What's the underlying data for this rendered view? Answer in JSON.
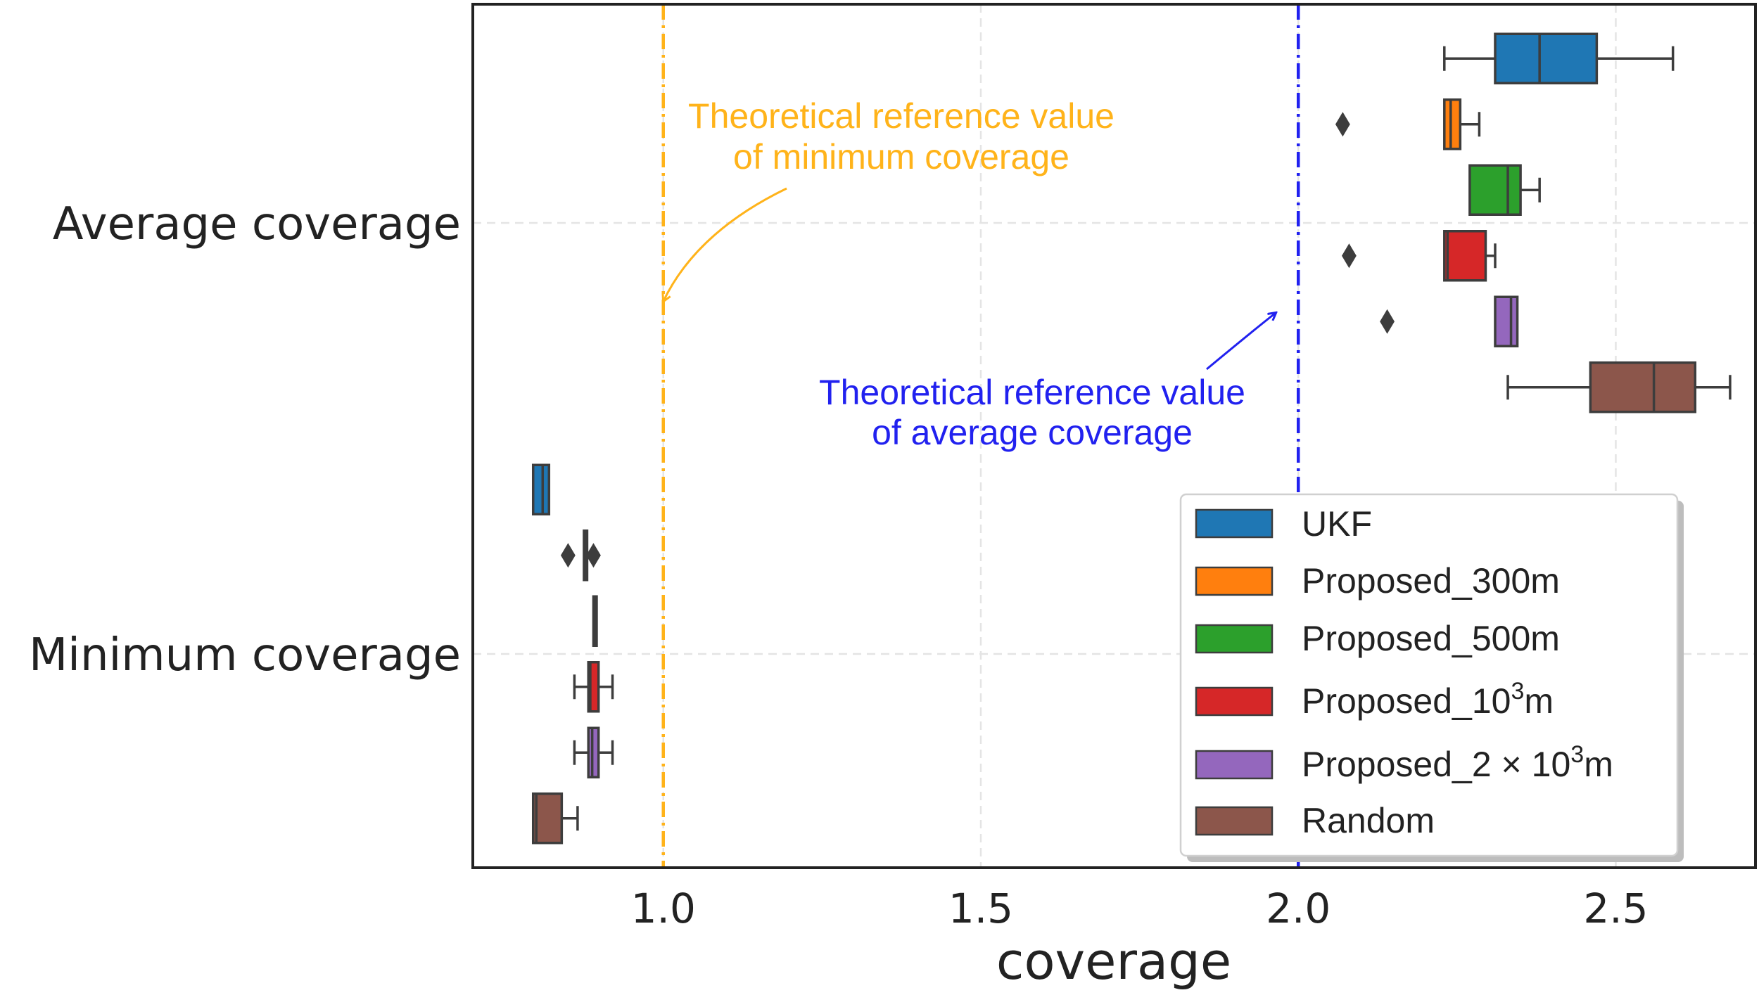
{
  "chart_data": {
    "type": "boxplot-horizontal",
    "xlabel": "coverage",
    "xlim": [
      0.7,
      2.72
    ],
    "xticks": [
      1.0,
      1.5,
      2.0,
      2.5
    ],
    "xtick_labels": [
      "1.0",
      "1.5",
      "2.0",
      "2.5"
    ],
    "grid": true,
    "categories": [
      "Average coverage",
      "Minimum coverage"
    ],
    "series": [
      {
        "name": "UKF",
        "color": "#1f77b4",
        "legend_label": "UKF",
        "boxes": [
          {
            "category": "Average coverage",
            "whisker_low": 2.23,
            "q1": 2.31,
            "median": 2.38,
            "q3": 2.47,
            "whisker_high": 2.59,
            "outliers": []
          },
          {
            "category": "Minimum coverage",
            "whisker_low": 0.795,
            "q1": 0.795,
            "median": 0.81,
            "q3": 0.82,
            "whisker_high": 0.82,
            "outliers": []
          }
        ]
      },
      {
        "name": "Proposed_300m",
        "color": "#ff7f0e",
        "legend_label": "Proposed_300m",
        "boxes": [
          {
            "category": "Average coverage",
            "whisker_low": 2.23,
            "q1": 2.23,
            "median": 2.24,
            "q3": 2.255,
            "whisker_high": 2.285,
            "outliers": [
              2.07
            ]
          },
          {
            "category": "Minimum coverage",
            "whisker_low": 0.875,
            "q1": 0.875,
            "median": 0.878,
            "q3": 0.88,
            "whisker_high": 0.88,
            "outliers": [
              0.85,
              0.89
            ]
          }
        ]
      },
      {
        "name": "Proposed_500m",
        "color": "#2ca02c",
        "legend_label": "Proposed_500m",
        "boxes": [
          {
            "category": "Average coverage",
            "whisker_low": 2.27,
            "q1": 2.27,
            "median": 2.33,
            "q3": 2.35,
            "whisker_high": 2.38,
            "outliers": []
          },
          {
            "category": "Minimum coverage",
            "whisker_low": 0.89,
            "q1": 0.89,
            "median": 0.893,
            "q3": 0.895,
            "whisker_high": 0.895,
            "outliers": []
          }
        ]
      },
      {
        "name": "Proposed_10³m",
        "color": "#d62728",
        "legend_label_prefix": "Proposed_10",
        "legend_label_sup": "3",
        "legend_label_suffix": "m",
        "boxes": [
          {
            "category": "Average coverage",
            "whisker_low": 2.23,
            "q1": 2.23,
            "median": 2.235,
            "q3": 2.295,
            "whisker_high": 2.31,
            "outliers": [
              2.08
            ]
          },
          {
            "category": "Minimum coverage",
            "whisker_low": 0.86,
            "q1": 0.882,
            "median": 0.885,
            "q3": 0.898,
            "whisker_high": 0.92,
            "outliers": []
          }
        ]
      },
      {
        "name": "Proposed_2 × 10³m",
        "color": "#9467bd",
        "legend_label_prefix": "Proposed_2 × 10",
        "legend_label_sup": "3",
        "legend_label_suffix": "m",
        "boxes": [
          {
            "category": "Average coverage",
            "whisker_low": 2.31,
            "q1": 2.31,
            "median": 2.335,
            "q3": 2.345,
            "whisker_high": 2.345,
            "outliers": [
              2.14
            ]
          },
          {
            "category": "Minimum coverage",
            "whisker_low": 0.86,
            "q1": 0.882,
            "median": 0.888,
            "q3": 0.898,
            "whisker_high": 0.92,
            "outliers": []
          }
        ]
      },
      {
        "name": "Random",
        "color": "#8c564b",
        "legend_label": "Random",
        "boxes": [
          {
            "category": "Average coverage",
            "whisker_low": 2.33,
            "q1": 2.46,
            "median": 2.56,
            "q3": 2.625,
            "whisker_high": 2.68,
            "outliers": []
          },
          {
            "category": "Minimum coverage",
            "whisker_low": 0.795,
            "q1": 0.795,
            "median": 0.8,
            "q3": 0.84,
            "whisker_high": 0.865,
            "outliers": []
          }
        ]
      }
    ],
    "reference_lines": [
      {
        "x": 1.0,
        "color": "#ffb31a",
        "label_line1": "Theoretical reference value",
        "label_line2": "of minimum coverage"
      },
      {
        "x": 2.0,
        "color": "#2121ef",
        "label_line1": "Theoretical reference value",
        "label_line2": "of average coverage"
      }
    ],
    "legend": {
      "placement": "lower-right"
    }
  }
}
